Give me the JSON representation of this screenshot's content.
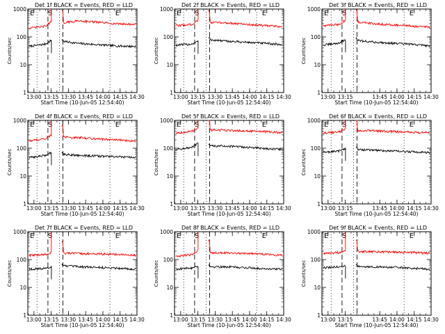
{
  "figure": {
    "legend_title_suffix": "BLACK = Events, RED = LLD",
    "xlabel": "Start Time (10-Jun-05 12:54:40)",
    "ylabel": "Counts/sec"
  },
  "colors": {
    "events": "#000000",
    "lld": "#ff0000"
  },
  "chart_data": [
    {
      "detector": "1f",
      "title": "Det 1f BLACK = Events, RED = LLD",
      "type": "line",
      "xticks": [
        "13:00",
        "13:15",
        "13:30",
        "13:45",
        "14:00",
        "14:15",
        "14:30"
      ],
      "xlabel": "Start Time (10-Jun-05 12:54:40)",
      "ylabel": "Counts/sec",
      "yscale": "log",
      "ylim": [
        1,
        1000
      ],
      "yticks": [
        "1",
        "10",
        "100",
        "1000"
      ],
      "markers": [
        {
          "label": "S",
          "x_min": 19.5
        },
        {
          "label": "E",
          "x_min": 78
        }
      ],
      "dotted_x_min": [
        8,
        27.5,
        71.5
      ],
      "dashed_x_min": [
        17.5,
        30.5
      ],
      "gap_x_min": [
        20.5,
        29.5
      ],
      "series": [
        {
          "name": "Events",
          "color": "#000000",
          "levels": [
            45,
            55,
            75,
            70,
            58,
            48,
            45
          ]
        },
        {
          "name": "LLD",
          "color": "#ff0000",
          "levels": [
            200,
            240,
            350,
            320,
            380,
            300,
            280
          ]
        }
      ]
    },
    {
      "detector": "2f",
      "title": "Det 2f BLACK = Events, RED = LLD",
      "type": "line",
      "xticks": [
        "13:00",
        "13:15",
        "13:30",
        "13:45",
        "14:00",
        "14:15",
        "14:30"
      ],
      "xlabel": "Start Time (10-Jun-05 12:54:40)",
      "ylabel": "Counts/sec",
      "yscale": "log",
      "ylim": [
        1,
        1000
      ],
      "yticks": [
        "1",
        "10",
        "100",
        "1000"
      ],
      "markers": [
        {
          "label": "S",
          "x_min": 19.5
        },
        {
          "label": "E",
          "x_min": 78
        }
      ],
      "dotted_x_min": [
        8,
        27.5,
        71.5
      ],
      "dashed_x_min": [
        17.5,
        30.5
      ],
      "gap_x_min": [
        20.5,
        29.5
      ],
      "series": [
        {
          "name": "Events",
          "color": "#000000",
          "levels": [
            50,
            55,
            70,
            80,
            70,
            60,
            52
          ]
        },
        {
          "name": "LLD",
          "color": "#ff0000",
          "levels": [
            250,
            280,
            400,
            330,
            320,
            260,
            230
          ]
        }
      ]
    },
    {
      "detector": "3f",
      "title": "Det 3f BLACK = Events, RED = LLD",
      "type": "line",
      "xticks": [
        "13:00",
        "13:15",
        "13:45",
        "14:00",
        "14:15",
        "14:30"
      ],
      "xlabel": "Start Time (10-Jun-05 12:54:40)",
      "ylabel": "Counts/sec",
      "yscale": "log",
      "ylim": [
        1,
        1000
      ],
      "yticks": [
        "1",
        "10",
        "100",
        "1000"
      ],
      "markers": [
        {
          "label": "S",
          "x_min": 19.5
        },
        {
          "label": "E",
          "x_min": 78
        }
      ],
      "dotted_x_min": [
        8,
        27.5,
        71.5
      ],
      "dashed_x_min": [
        17.5,
        30.5
      ],
      "gap_x_min": [
        20.5,
        29.5
      ],
      "series": [
        {
          "name": "Events",
          "color": "#000000",
          "levels": [
            50,
            60,
            80,
            75,
            65,
            55,
            48
          ]
        },
        {
          "name": "LLD",
          "color": "#ff0000",
          "levels": [
            250,
            280,
            400,
            350,
            300,
            250,
            220
          ]
        }
      ]
    },
    {
      "detector": "4f",
      "title": "Det 4f BLACK = Events, RED = LLD",
      "type": "line",
      "xticks": [
        "13:00",
        "13:15",
        "13:30",
        "13:45",
        "14:00",
        "14:15",
        "14:30"
      ],
      "xlabel": "Start Time (10-Jun-05 12:54:40)",
      "ylabel": "Counts/sec",
      "yscale": "log",
      "ylim": [
        1,
        1000
      ],
      "yticks": [
        "1",
        "10",
        "100",
        "1000"
      ],
      "markers": [
        {
          "label": "S",
          "x_min": 19.5
        },
        {
          "label": "E",
          "x_min": 78
        }
      ],
      "dotted_x_min": [
        8,
        27.5,
        71.5
      ],
      "dashed_x_min": [
        17.5,
        30.5
      ],
      "gap_x_min": [
        20.5,
        29.5
      ],
      "series": [
        {
          "name": "Events",
          "color": "#000000",
          "levels": [
            45,
            55,
            70,
            62,
            55,
            50,
            45
          ]
        },
        {
          "name": "LLD",
          "color": "#ff0000",
          "levels": [
            180,
            220,
            300,
            250,
            240,
            200,
            180
          ]
        }
      ]
    },
    {
      "detector": "5f",
      "title": "Det 5f BLACK = Events, RED = LLD",
      "type": "line",
      "xticks": [
        "13:00",
        "13:15",
        "13:30",
        "13:45",
        "14:00",
        "14:15",
        "14:30"
      ],
      "xlabel": "Start Time (10-Jun-05 12:54:40)",
      "ylabel": "Counts/sec",
      "yscale": "log",
      "ylim": [
        1,
        1000
      ],
      "yticks": [
        "1",
        "10",
        "100",
        "1000"
      ],
      "markers": [
        {
          "label": "S",
          "x_min": 19.5
        },
        {
          "label": "E",
          "x_min": 78
        }
      ],
      "dotted_x_min": [
        8,
        27.5,
        71.5
      ],
      "dashed_x_min": [
        17.5,
        30.5
      ],
      "gap_x_min": [
        20.5,
        29.5
      ],
      "series": [
        {
          "name": "Events",
          "color": "#000000",
          "levels": [
            90,
            105,
            150,
            120,
            120,
            100,
            90
          ]
        },
        {
          "name": "LLD",
          "color": "#ff0000",
          "levels": [
            350,
            400,
            550,
            450,
            440,
            400,
            360
          ]
        }
      ]
    },
    {
      "detector": "6f",
      "title": "Det 6f BLACK = Events, RED = LLD",
      "type": "line",
      "xticks": [
        "13:00",
        "13:15",
        "13:45",
        "14:00",
        "14:15",
        "14:30"
      ],
      "xlabel": "Start Time (10-Jun-05 12:54:40)",
      "ylabel": "Counts/sec",
      "yscale": "log",
      "ylim": [
        1,
        1000
      ],
      "yticks": [
        "1",
        "10",
        "100",
        "1000"
      ],
      "markers": [
        {
          "label": "S",
          "x_min": 19.5
        },
        {
          "label": "E",
          "x_min": 78
        }
      ],
      "dotted_x_min": [
        8,
        27.5,
        71.5
      ],
      "dashed_x_min": [
        17.5,
        30.5
      ],
      "gap_x_min": [
        20.5,
        29.5
      ],
      "series": [
        {
          "name": "Events",
          "color": "#000000",
          "levels": [
            70,
            80,
            100,
            90,
            85,
            75,
            70
          ]
        },
        {
          "name": "LLD",
          "color": "#ff0000",
          "levels": [
            350,
            380,
            500,
            430,
            420,
            380,
            350
          ]
        }
      ]
    },
    {
      "detector": "7f",
      "title": "Det 7f BLACK = Events, RED = LLD",
      "type": "line",
      "xticks": [
        "13:00",
        "13:15",
        "13:30",
        "13:45",
        "14:00",
        "14:15",
        "14:30"
      ],
      "xlabel": "Start Time (10-Jun-05 12:54:40)",
      "ylabel": "Counts/sec",
      "yscale": "log",
      "ylim": [
        1,
        1000
      ],
      "yticks": [
        "1",
        "10",
        "100",
        "1000"
      ],
      "markers": [
        {
          "label": "S",
          "x_min": 19.5
        },
        {
          "label": "E",
          "x_min": 78
        }
      ],
      "dotted_x_min": [
        8,
        27.5,
        71.5
      ],
      "dashed_x_min": [
        17.5,
        30.5
      ],
      "gap_x_min": [
        20.5,
        29.5
      ],
      "series": [
        {
          "name": "Events",
          "color": "#000000",
          "levels": [
            45,
            48,
            55,
            60,
            55,
            50,
            45
          ]
        },
        {
          "name": "LLD",
          "color": "#ff0000",
          "levels": [
            140,
            150,
            180,
            170,
            165,
            155,
            140
          ]
        }
      ]
    },
    {
      "detector": "8f",
      "title": "Det 8f BLACK = Events, RED = LLD",
      "type": "line",
      "xticks": [
        "13:00",
        "13:15",
        "13:30",
        "13:45",
        "14:00",
        "14:15",
        "14:30"
      ],
      "xlabel": "Start Time (10-Jun-05 12:54:40)",
      "ylabel": "Counts/sec",
      "yscale": "log",
      "ylim": [
        1,
        1000
      ],
      "yticks": [
        "1",
        "10",
        "100",
        "1000"
      ],
      "markers": [
        {
          "label": "S",
          "x_min": 19.5
        },
        {
          "label": "E",
          "x_min": 78
        }
      ],
      "dotted_x_min": [
        8,
        27.5,
        71.5
      ],
      "dashed_x_min": [
        17.5,
        30.5
      ],
      "gap_x_min": [
        20.5,
        29.5
      ],
      "series": [
        {
          "name": "Events",
          "color": "#000000",
          "levels": [
            45,
            50,
            60,
            55,
            55,
            48,
            45
          ]
        },
        {
          "name": "LLD",
          "color": "#ff0000",
          "levels": [
            130,
            150,
            200,
            180,
            175,
            160,
            140
          ]
        }
      ]
    },
    {
      "detector": "9f",
      "title": "Det 9f BLACK = Events, RED = LLD",
      "type": "line",
      "xticks": [
        "13:00",
        "13:15",
        "13:45",
        "14:00",
        "14:15",
        "14:30"
      ],
      "xlabel": "Start Time (10-Jun-05 12:54:40)",
      "ylabel": "Counts/sec",
      "yscale": "log",
      "ylim": [
        1,
        1000
      ],
      "yticks": [
        "1",
        "10",
        "100",
        "1000"
      ],
      "markers": [
        {
          "label": "S",
          "x_min": 19.5
        },
        {
          "label": "E",
          "x_min": 78
        }
      ],
      "dotted_x_min": [
        8,
        27.5,
        71.5
      ],
      "dashed_x_min": [
        17.5,
        30.5
      ],
      "gap_x_min": [
        20.5,
        29.5
      ],
      "series": [
        {
          "name": "Events",
          "color": "#000000",
          "levels": [
            50,
            55,
            60,
            55,
            55,
            50,
            45
          ]
        },
        {
          "name": "LLD",
          "color": "#ff0000",
          "levels": [
            160,
            180,
            220,
            200,
            190,
            180,
            170
          ]
        }
      ]
    }
  ]
}
